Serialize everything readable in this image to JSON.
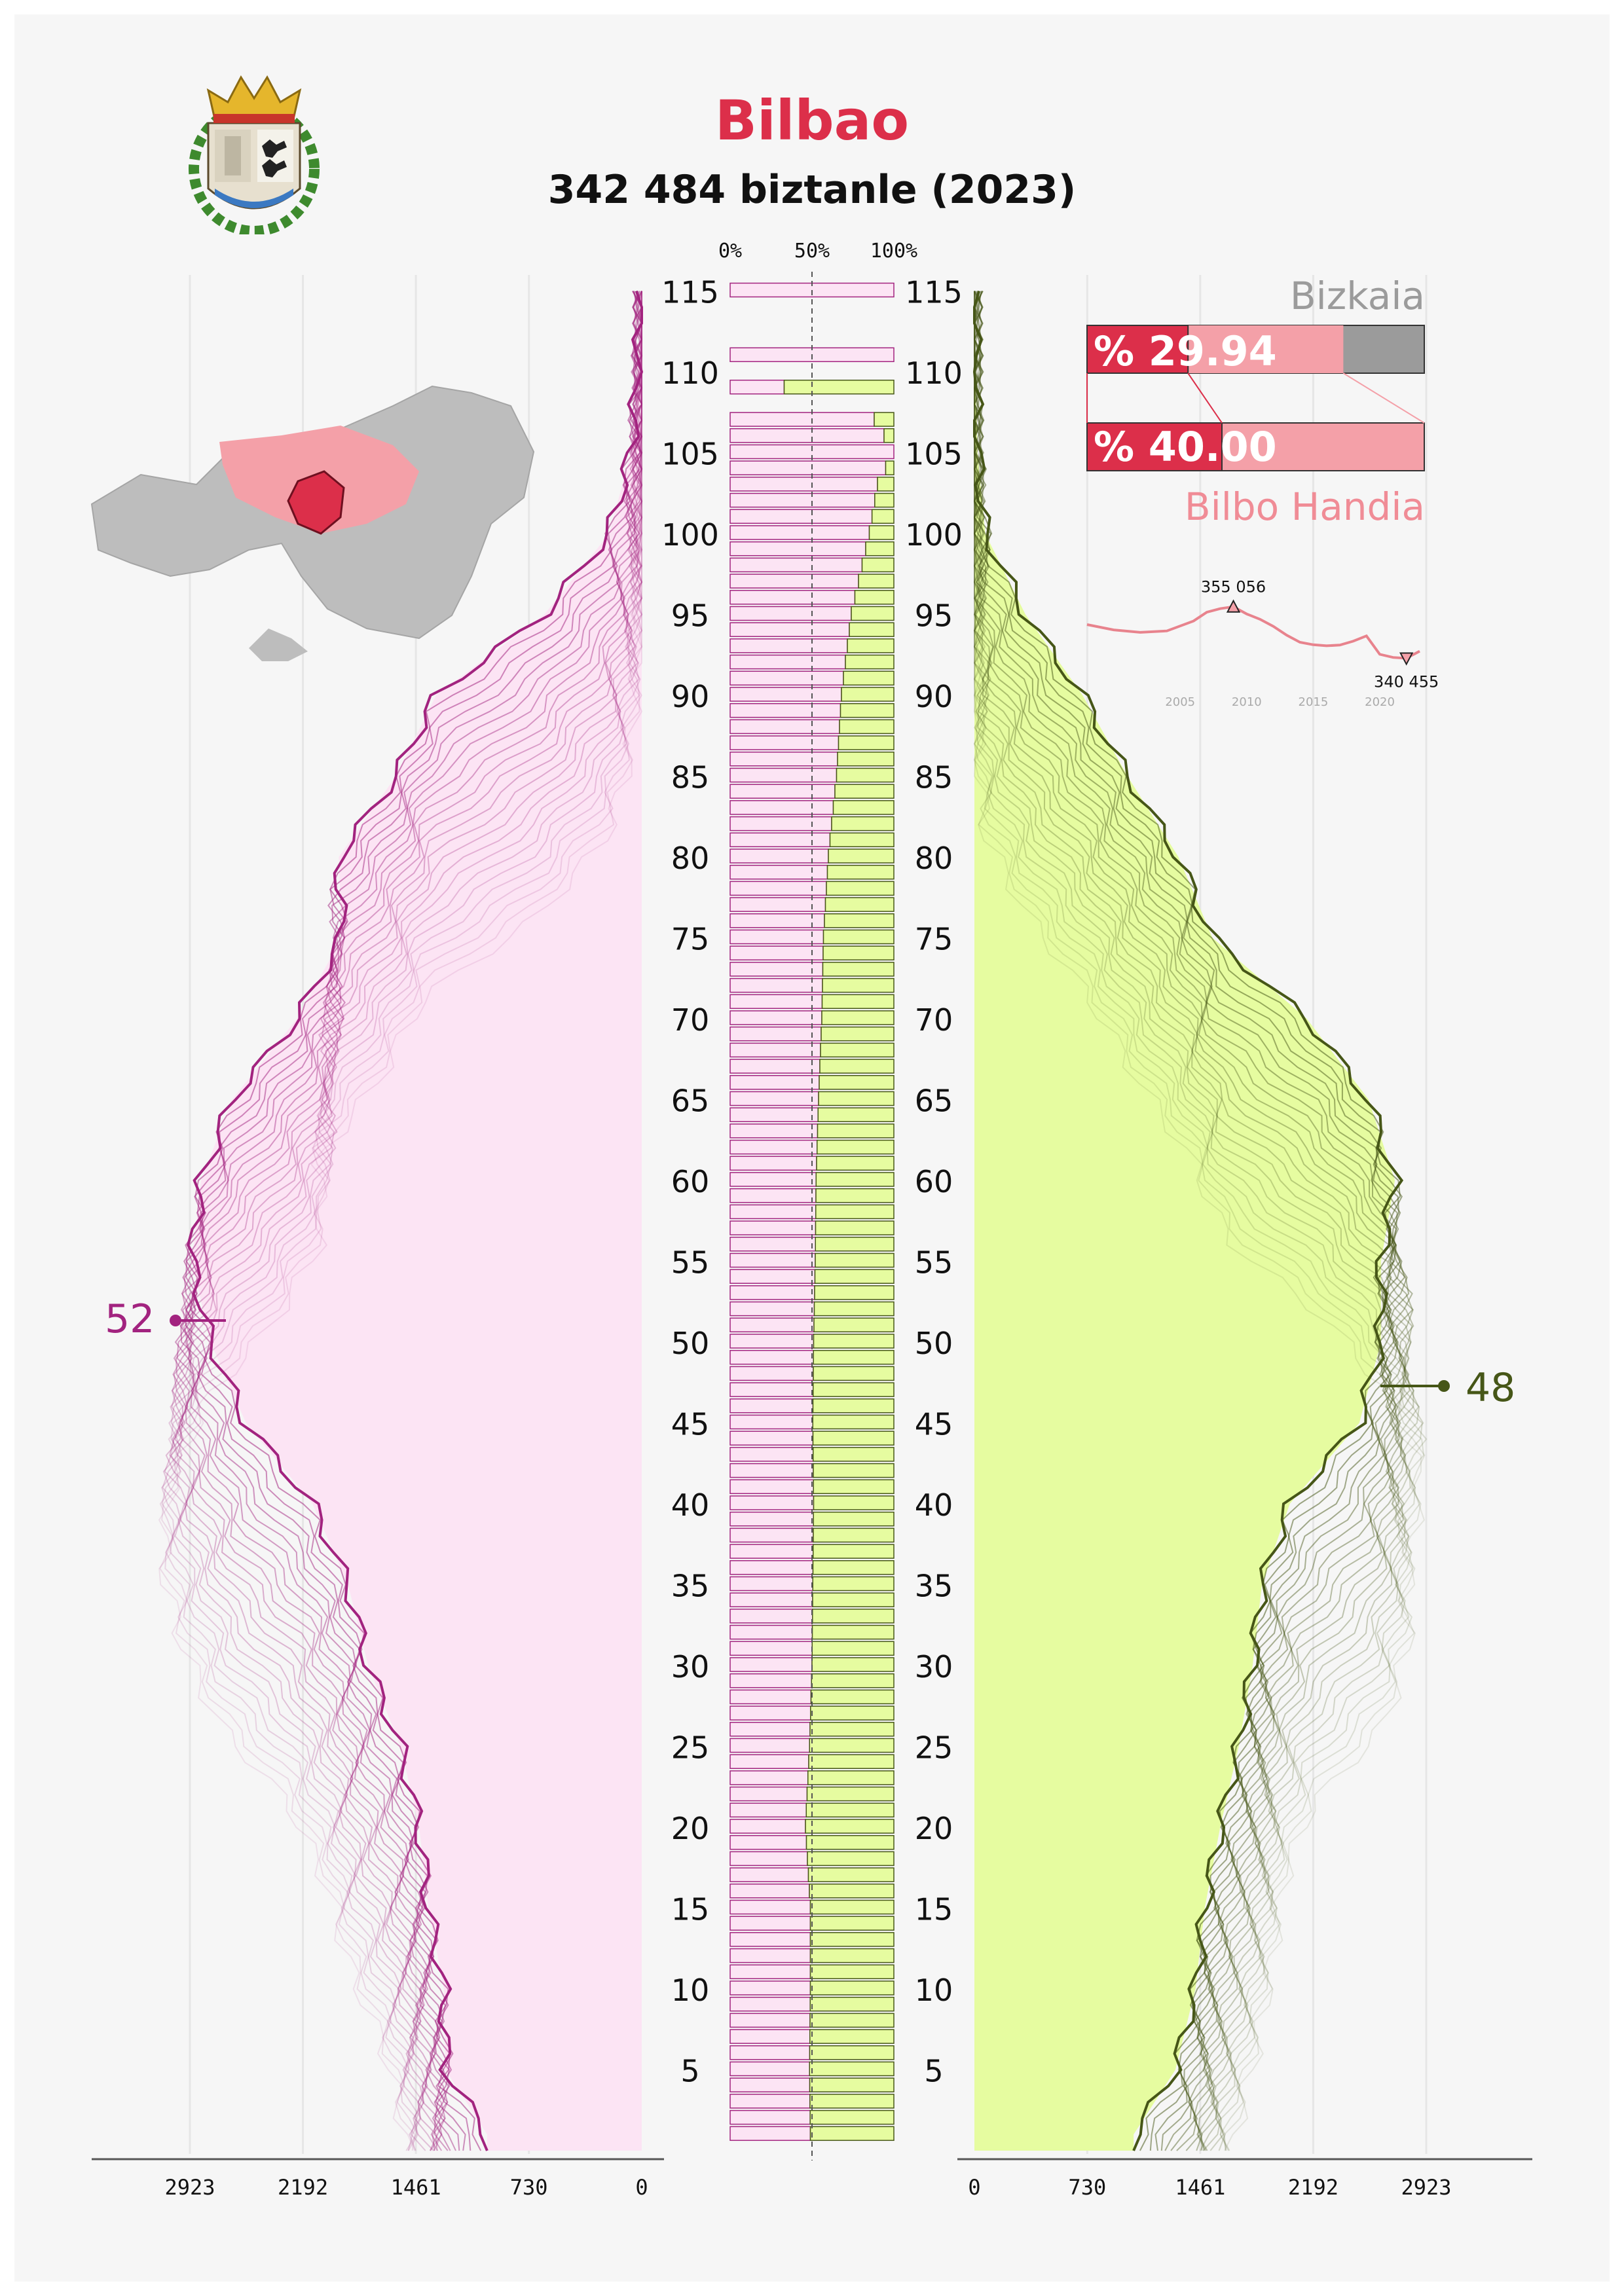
{
  "header": {
    "title": "Bilbao",
    "subtitle": "342 484 biztanle (2023)"
  },
  "labels": {
    "left_end": "52",
    "right_end": "48"
  },
  "colors": {
    "female_line": "#a2237f",
    "female_fill": "#fce4f4",
    "male_line": "#465617",
    "male_fill": "#e6fca0",
    "accent": "#dc2f4a",
    "metro": "#f4a0a8",
    "region": "#9b9b9b"
  },
  "share": {
    "region_label": "Bizkaia",
    "metro_label": "Bilbo Handia",
    "region_pct_text": "% 29.94",
    "metro_pct_text": "% 40.00",
    "region_pct": 29.94,
    "metro_pct": 40.0
  },
  "chart_data": [
    {
      "type": "population-pyramid",
      "title": "",
      "x_ticks_left": [
        "2923",
        "2192",
        "1461",
        "730",
        "0"
      ],
      "x_ticks_right": [
        "0",
        "730",
        "1461",
        "2192",
        "2923"
      ],
      "x_max": 3600,
      "y_ticks": [
        "115",
        "110",
        "105",
        "100",
        "95",
        "90",
        "85",
        "80",
        "75",
        "70",
        "65",
        "60",
        "55",
        "50",
        "45",
        "40",
        "35",
        "30",
        "25",
        "20",
        "15",
        "10",
        "5"
      ],
      "series": [
        {
          "name": "52",
          "side": "left",
          "ages": [
            1,
            5,
            10,
            15,
            20,
            25,
            30,
            35,
            40,
            45,
            50,
            55,
            60,
            65,
            70,
            75,
            80,
            85,
            90,
            95,
            100,
            105,
            110,
            115
          ],
          "values": [
            1000,
            1270,
            1280,
            1380,
            1440,
            1560,
            1770,
            1900,
            2130,
            2560,
            2790,
            2910,
            2850,
            2650,
            2230,
            1940,
            1960,
            1590,
            1330,
            630,
            210,
            70,
            25,
            5
          ]
        },
        {
          "name": "48",
          "side": "right",
          "ages": [
            1,
            5,
            10,
            15,
            20,
            25,
            30,
            35,
            40,
            45,
            50,
            55,
            60,
            65,
            70,
            75,
            80,
            85,
            90,
            95,
            100,
            105,
            110,
            115
          ],
          "values": [
            1030,
            1300,
            1430,
            1490,
            1590,
            1710,
            1800,
            1860,
            2040,
            2490,
            2630,
            2630,
            2720,
            2550,
            2150,
            1540,
            1320,
            990,
            700,
            330,
            70,
            20,
            5,
            0
          ]
        }
      ]
    },
    {
      "type": "bar",
      "title": "",
      "x_ticks": [
        "0%",
        "50%",
        "100%"
      ],
      "ages": [
        1,
        5,
        10,
        15,
        20,
        25,
        30,
        35,
        40,
        45,
        50,
        55,
        60,
        65,
        70,
        75,
        80,
        85,
        90,
        95,
        100,
        103,
        105,
        107,
        109,
        111,
        115
      ],
      "female_pct": [
        49,
        48.5,
        49,
        49,
        46,
        48.5,
        50,
        50.5,
        51,
        50.5,
        51,
        52,
        52.5,
        54,
        56,
        57,
        60,
        65,
        68,
        74,
        85,
        90,
        100,
        88,
        33,
        100,
        100
      ]
    },
    {
      "type": "line",
      "title": "",
      "x": [
        1998,
        2000,
        2002,
        2004,
        2006,
        2007,
        2008,
        2009,
        2010,
        2011,
        2012,
        2013,
        2014,
        2015,
        2016,
        2017,
        2018,
        2019,
        2020,
        2021,
        2022,
        2023
      ],
      "values": [
        350000,
        348500,
        347800,
        348200,
        351000,
        353500,
        354500,
        355056,
        353000,
        351500,
        349500,
        347000,
        345000,
        344300,
        344000,
        344200,
        345300,
        346800,
        341600,
        340700,
        340455,
        342484
      ],
      "x_ticks": [
        "2005",
        "2010",
        "2015",
        "2020"
      ],
      "annotations": [
        "355 056",
        "340 455"
      ]
    }
  ]
}
